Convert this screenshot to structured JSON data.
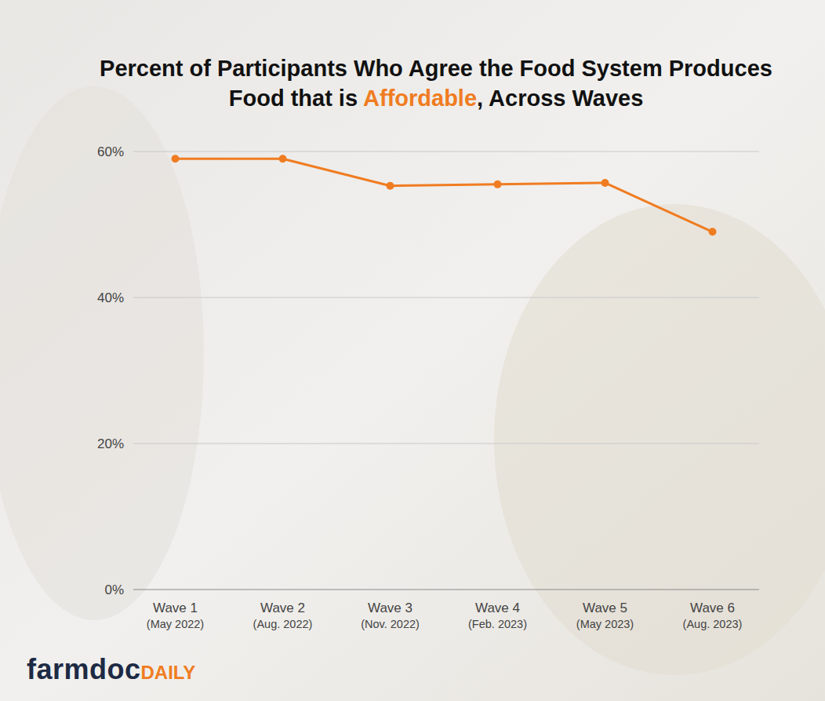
{
  "chart_data": {
    "type": "line",
    "title": [
      "Percent of Participants Who Agree the Food System Produces Food that is ",
      "Affordable",
      ", Across Waves"
    ],
    "categories": [
      "Wave 1 (May 2022)",
      "Wave 2 (Aug. 2022)",
      "Wave 3 (Nov. 2022)",
      "Wave 4 (Feb. 2023)",
      "Wave 5 (May 2023)",
      "Wave 6 (Aug. 2023)"
    ],
    "values": [
      59,
      59,
      55.3,
      55.5,
      55.7,
      49
    ],
    "color": "#f07c21",
    "marker": "circle",
    "ylim": [
      0,
      60
    ],
    "yticks": [
      {
        "value": 0,
        "label": "0%"
      },
      {
        "value": 20,
        "label": "20%"
      },
      {
        "value": 40,
        "label": "40%"
      },
      {
        "value": 60,
        "label": "60%"
      }
    ],
    "grid": true,
    "logo": [
      "farmdoc",
      "DAILY"
    ]
  }
}
